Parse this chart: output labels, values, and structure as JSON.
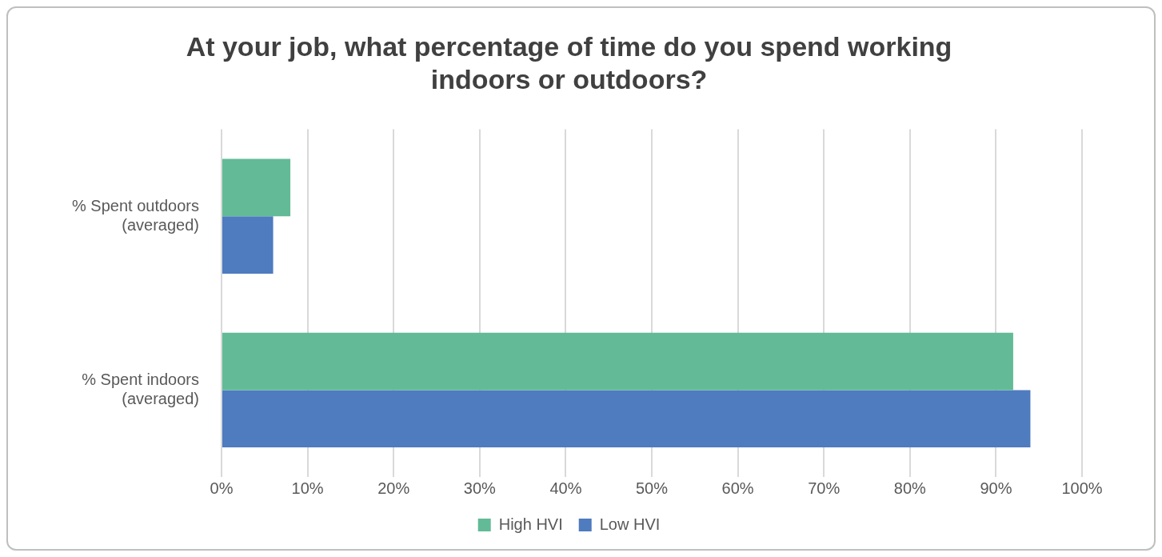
{
  "chart_data": {
    "type": "bar",
    "orientation": "horizontal",
    "title": "At your job, what percentage of time do you spend working indoors or outdoors?",
    "categories": [
      "% Spent outdoors (averaged)",
      "% Spent indoors (averaged)"
    ],
    "series": [
      {
        "name": "High HVI",
        "color": "#62bb96",
        "values": [
          8,
          92
        ]
      },
      {
        "name": "Low HVI",
        "color": "#4f7bbf",
        "values": [
          6,
          94
        ]
      }
    ],
    "xlim": [
      0,
      100
    ],
    "xticks": [
      {
        "value": 0,
        "label": "0%"
      },
      {
        "value": 10,
        "label": "10%"
      },
      {
        "value": 20,
        "label": "20%"
      },
      {
        "value": 30,
        "label": "30%"
      },
      {
        "value": 40,
        "label": "40%"
      },
      {
        "value": 50,
        "label": "50%"
      },
      {
        "value": 60,
        "label": "60%"
      },
      {
        "value": 70,
        "label": "70%"
      },
      {
        "value": 80,
        "label": "80%"
      },
      {
        "value": 90,
        "label": "90%"
      },
      {
        "value": 100,
        "label": "100%"
      }
    ],
    "grid": "x",
    "legend": "bottom"
  }
}
